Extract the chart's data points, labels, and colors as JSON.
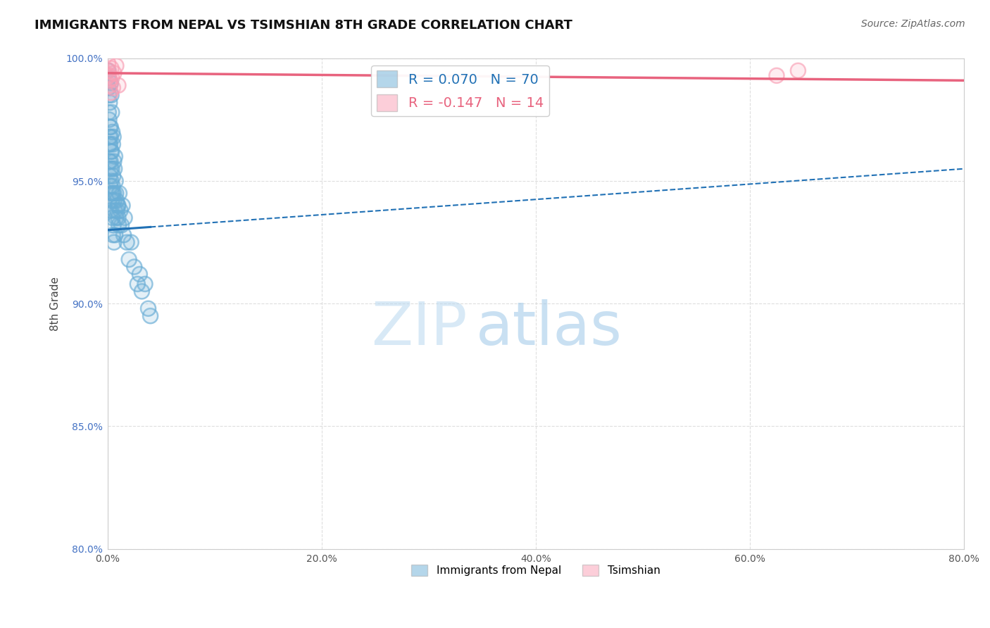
{
  "title": "IMMIGRANTS FROM NEPAL VS TSIMSHIAN 8TH GRADE CORRELATION CHART",
  "source": "Source: ZipAtlas.com",
  "ylabel": "8th Grade",
  "xlim": [
    0.0,
    80.0
  ],
  "ylim": [
    80.0,
    100.0
  ],
  "xticks": [
    0.0,
    20.0,
    40.0,
    60.0,
    80.0
  ],
  "yticks": [
    80.0,
    85.0,
    90.0,
    95.0,
    100.0
  ],
  "nepal_R": 0.07,
  "nepal_N": 70,
  "tsimshian_R": -0.147,
  "tsimshian_N": 14,
  "nepal_color": "#6baed6",
  "tsimshian_color": "#fa9fb5",
  "nepal_line_color": "#2171b5",
  "tsimshian_line_color": "#e8637e",
  "nepal_line_solid_end": 4.0,
  "nepal_scatter_x": [
    0.05,
    0.08,
    0.1,
    0.1,
    0.12,
    0.15,
    0.15,
    0.18,
    0.2,
    0.2,
    0.2,
    0.22,
    0.25,
    0.25,
    0.28,
    0.3,
    0.3,
    0.3,
    0.3,
    0.32,
    0.35,
    0.35,
    0.38,
    0.4,
    0.4,
    0.4,
    0.42,
    0.45,
    0.45,
    0.48,
    0.5,
    0.5,
    0.52,
    0.55,
    0.55,
    0.58,
    0.6,
    0.6,
    0.62,
    0.65,
    0.68,
    0.7,
    0.72,
    0.75,
    0.78,
    0.8,
    0.85,
    0.9,
    0.95,
    1.0,
    1.05,
    1.1,
    1.2,
    1.3,
    1.4,
    1.5,
    1.6,
    1.8,
    2.0,
    2.2,
    2.5,
    2.8,
    3.0,
    3.2,
    3.5,
    3.8,
    4.0,
    0.3,
    0.5,
    1.0
  ],
  "nepal_scatter_y": [
    99.5,
    98.8,
    99.2,
    97.8,
    98.5,
    96.5,
    97.5,
    95.8,
    98.2,
    96.8,
    95.2,
    97.2,
    96.5,
    94.8,
    95.8,
    99.0,
    97.2,
    95.5,
    93.8,
    96.2,
    98.5,
    95.0,
    94.5,
    97.8,
    96.2,
    94.2,
    95.5,
    97.0,
    93.5,
    94.8,
    96.5,
    92.8,
    95.2,
    96.8,
    93.2,
    94.5,
    95.8,
    92.5,
    94.2,
    95.5,
    93.8,
    96.0,
    92.8,
    95.0,
    94.5,
    93.5,
    94.2,
    93.8,
    94.0,
    93.5,
    93.2,
    94.5,
    93.8,
    93.2,
    94.0,
    92.8,
    93.5,
    92.5,
    91.8,
    92.5,
    91.5,
    90.8,
    91.2,
    90.5,
    90.8,
    89.8,
    89.5,
    96.8,
    94.5,
    94.0
  ],
  "tsimshian_scatter_x": [
    0.05,
    0.1,
    0.15,
    0.2,
    0.25,
    0.3,
    0.35,
    0.4,
    0.5,
    0.6,
    0.8,
    1.0,
    62.5,
    64.5
  ],
  "tsimshian_scatter_y": [
    99.8,
    99.5,
    99.3,
    99.1,
    98.9,
    98.6,
    99.6,
    99.2,
    98.8,
    99.4,
    99.7,
    98.9,
    99.3,
    99.5
  ],
  "background_color": "#ffffff",
  "grid_color": "#d0d0d0"
}
